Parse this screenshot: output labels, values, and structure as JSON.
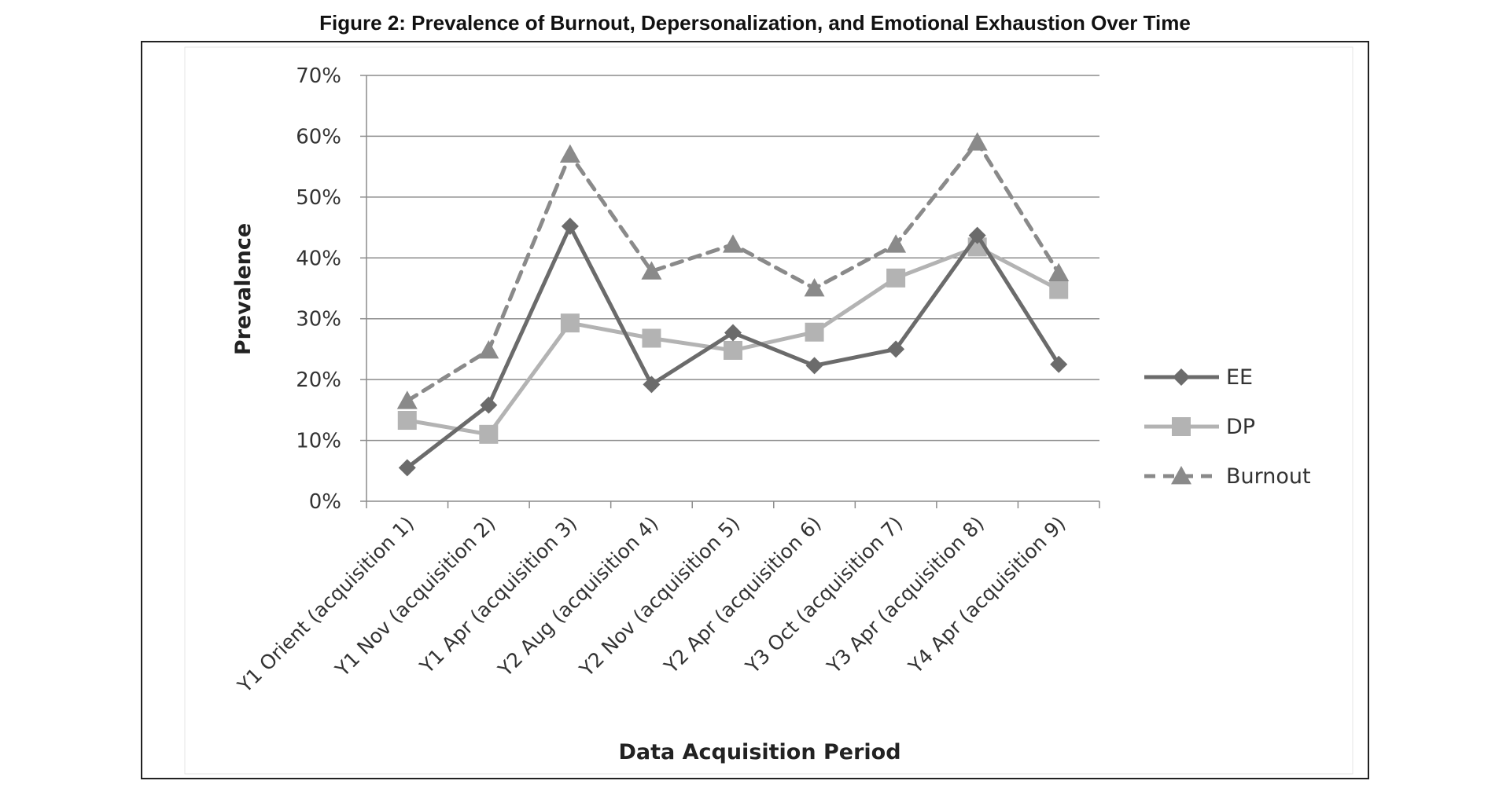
{
  "figure_title": "Figure 2: Prevalence of Burnout, Depersonalization, and Emotional Exhaustion Over Time",
  "chart_data": {
    "type": "line",
    "title": "Figure 2: Prevalence of Burnout, Depersonalization, and Emotional Exhaustion Over Time",
    "xlabel": "Data Acquisition Period",
    "ylabel": "Prevalence",
    "ylim": [
      0,
      0.7
    ],
    "yticks": [
      0,
      0.1,
      0.2,
      0.3,
      0.4,
      0.5,
      0.6,
      0.7
    ],
    "ytick_labels": [
      "0%",
      "10%",
      "20%",
      "30%",
      "40%",
      "50%",
      "60%",
      "70%"
    ],
    "grid": "horizontal",
    "legend_position": "right",
    "categories": [
      "Y1 Orient (acquisition 1)",
      "Y1 Nov (acquisition 2)",
      "Y1 Apr (acquisition 3)",
      "Y2 Aug (acquisition 4)",
      "Y2 Nov (acquisition 5)",
      "Y2 Apr (acquisition 6)",
      "Y3 Oct (acquisition 7)",
      "Y3 Apr (acquisition 8)",
      "Y4 Apr (acquisition 9)"
    ],
    "series": [
      {
        "name": "EE",
        "values": [
          0.055,
          0.158,
          0.452,
          0.192,
          0.277,
          0.223,
          0.25,
          0.437,
          0.225
        ],
        "color": "#6b6b6b",
        "marker": "diamond",
        "dash": "solid"
      },
      {
        "name": "DP",
        "values": [
          0.133,
          0.11,
          0.293,
          0.268,
          0.248,
          0.278,
          0.367,
          0.418,
          0.348
        ],
        "color": "#b3b3b3",
        "marker": "square",
        "dash": "solid"
      },
      {
        "name": "Burnout",
        "values": [
          0.165,
          0.248,
          0.57,
          0.378,
          0.422,
          0.35,
          0.422,
          0.59,
          0.375
        ],
        "color": "#8a8a8a",
        "marker": "triangle",
        "dash": "dashed"
      }
    ]
  }
}
